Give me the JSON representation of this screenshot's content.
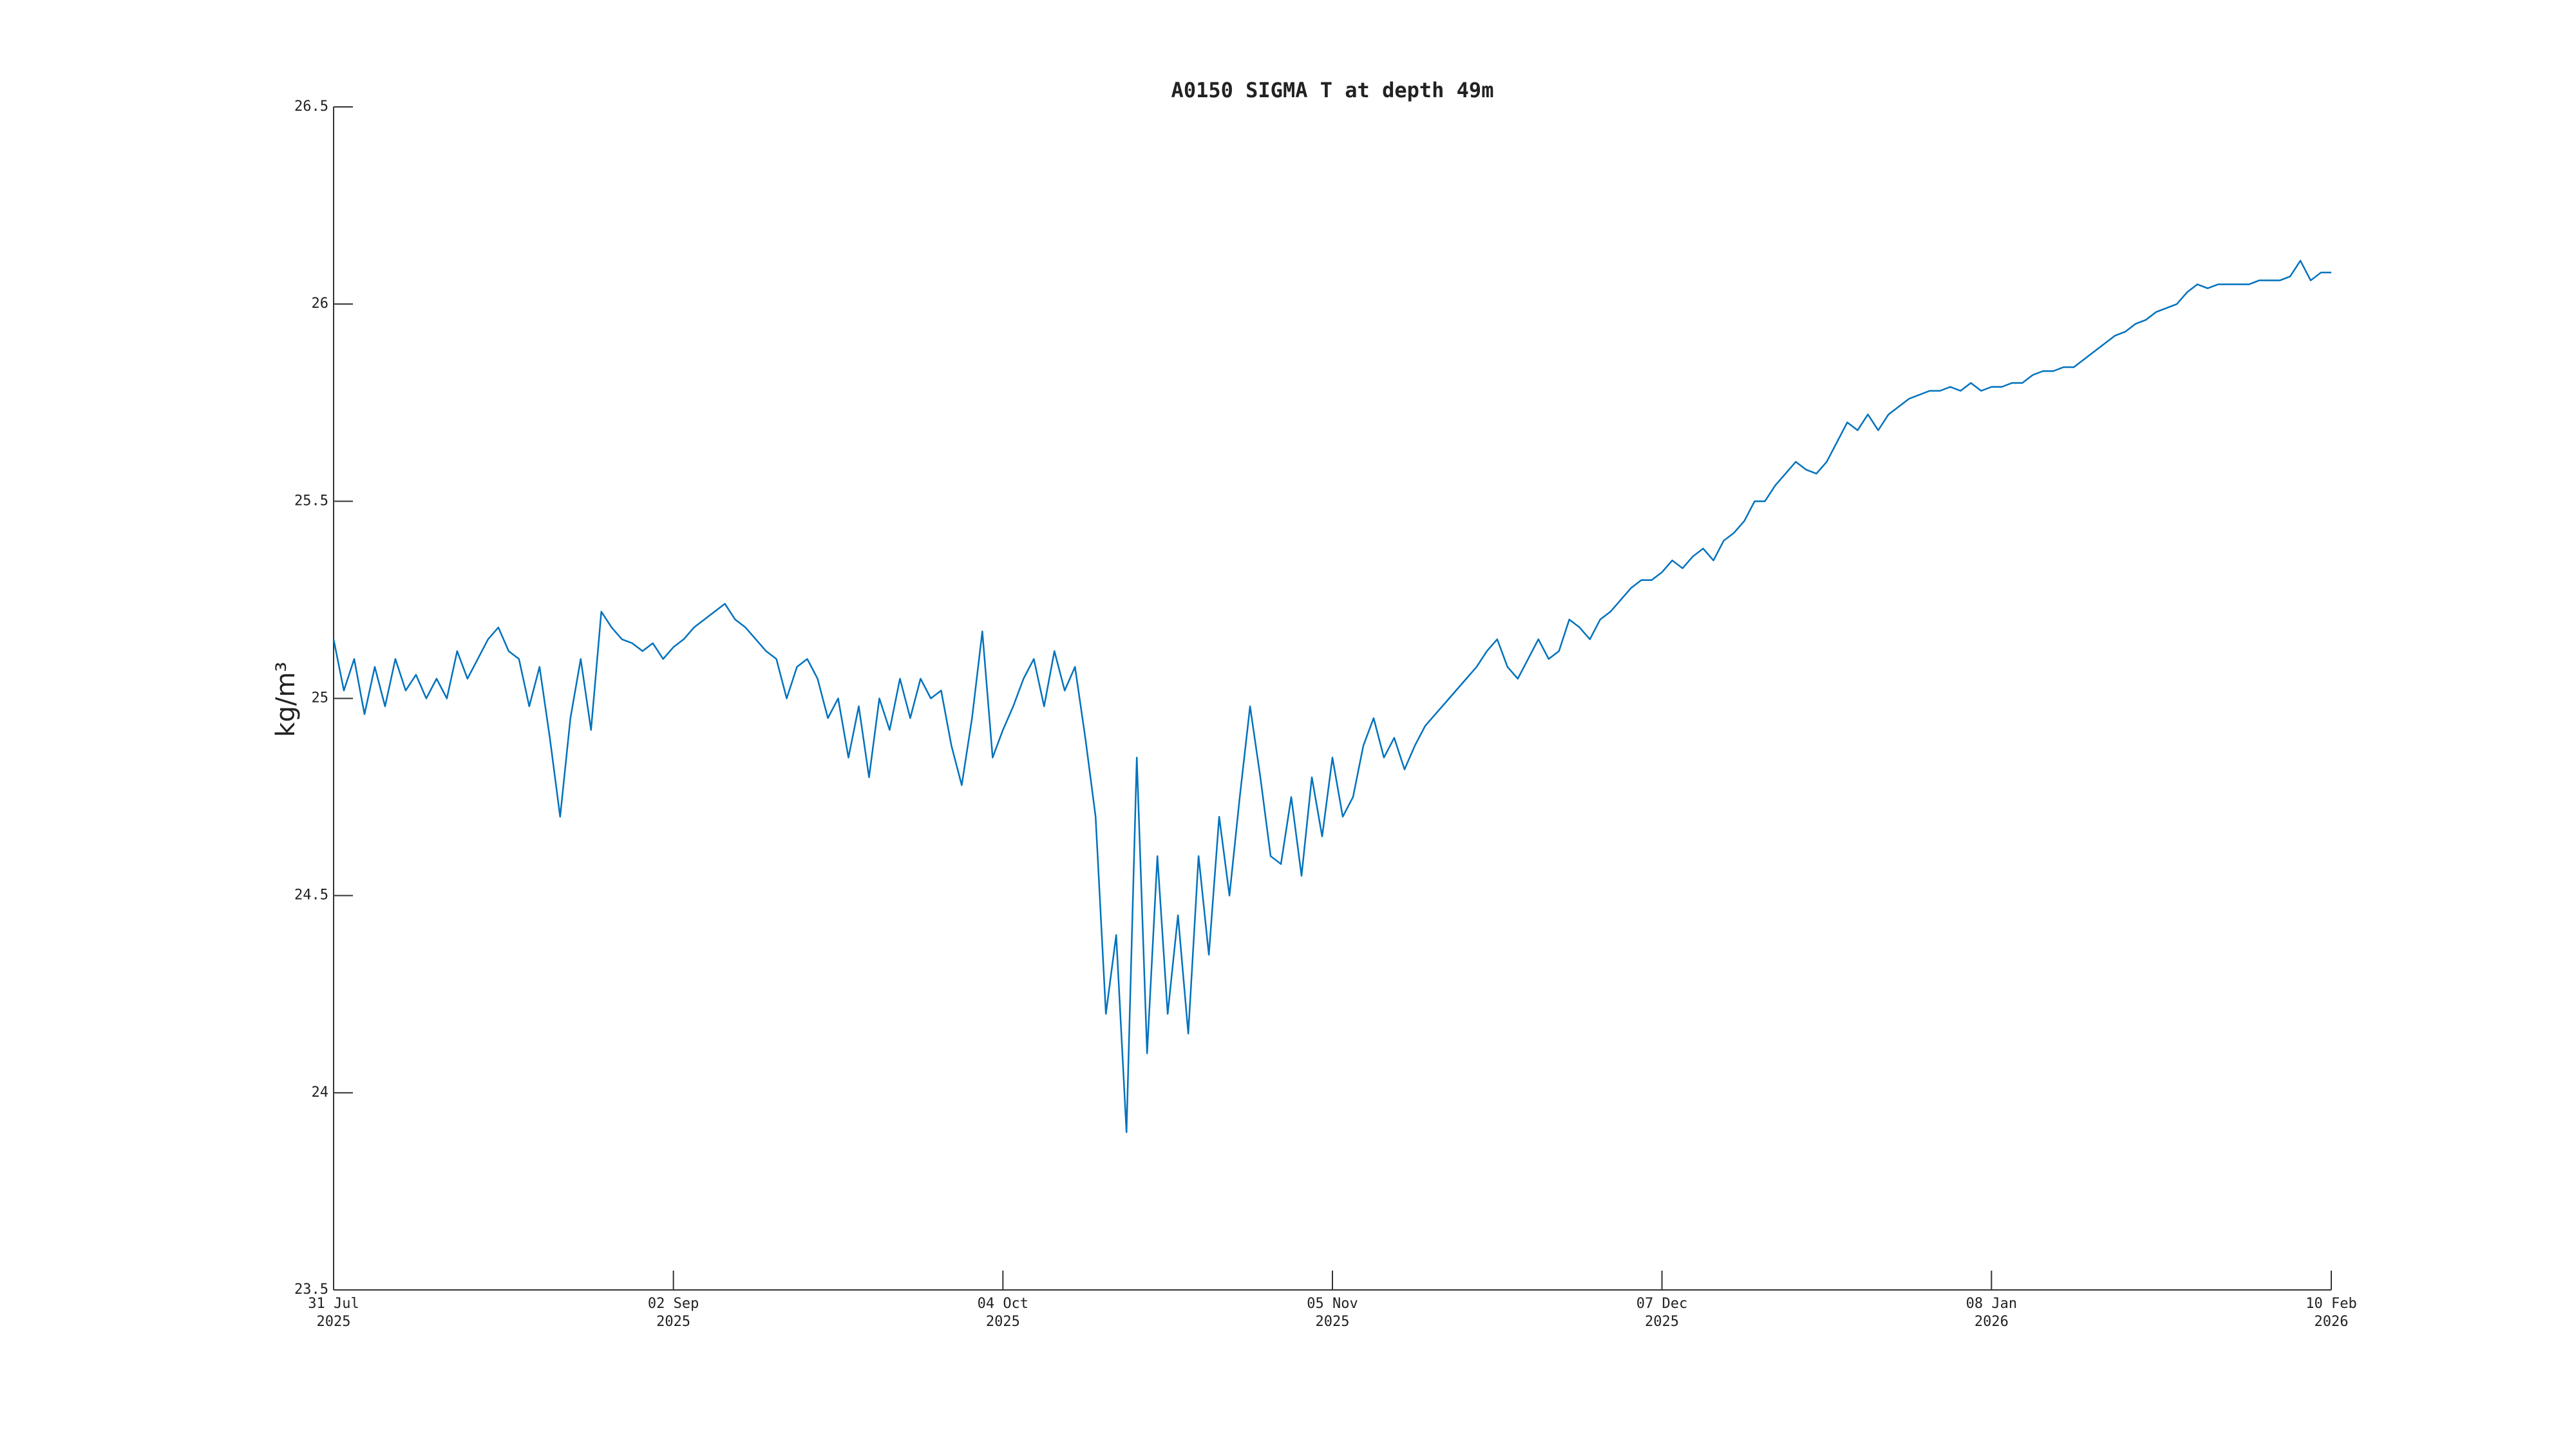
{
  "chart_data": {
    "type": "line",
    "title": "A0150 SIGMA T at depth 49m",
    "y_label": "kg/m³",
    "color": "#0072bd",
    "xlim": [
      "2025-07-31",
      "2026-02-10"
    ],
    "xticks": [
      {
        "value": "2025-07-31",
        "label": [
          "31 Jul",
          "2025"
        ]
      },
      {
        "value": "2025-09-02",
        "label": [
          "02 Sep",
          "2025"
        ]
      },
      {
        "value": "2025-10-04",
        "label": [
          "04 Oct",
          "2025"
        ]
      },
      {
        "value": "2025-11-05",
        "label": [
          "05 Nov",
          "2025"
        ]
      },
      {
        "value": "2025-12-07",
        "label": [
          "07 Dec",
          "2025"
        ]
      },
      {
        "value": "2026-01-08",
        "label": [
          "08 Jan",
          "2026"
        ]
      },
      {
        "value": "2026-02-10",
        "label": [
          "10 Feb",
          "2026"
        ]
      }
    ],
    "ylim": [
      23.5,
      26.5
    ],
    "yticks": [
      23.5,
      24,
      24.5,
      25,
      25.5,
      26,
      26.5
    ],
    "x": [
      "2025-07-31",
      "2025-08-01",
      "2025-08-02",
      "2025-08-03",
      "2025-08-04",
      "2025-08-05",
      "2025-08-06",
      "2025-08-07",
      "2025-08-08",
      "2025-08-09",
      "2025-08-10",
      "2025-08-11",
      "2025-08-12",
      "2025-08-13",
      "2025-08-14",
      "2025-08-15",
      "2025-08-16",
      "2025-08-17",
      "2025-08-18",
      "2025-08-19",
      "2025-08-20",
      "2025-08-21",
      "2025-08-22",
      "2025-08-23",
      "2025-08-24",
      "2025-08-25",
      "2025-08-26",
      "2025-08-27",
      "2025-08-28",
      "2025-08-29",
      "2025-08-30",
      "2025-08-31",
      "2025-09-01",
      "2025-09-02",
      "2025-09-03",
      "2025-09-04",
      "2025-09-05",
      "2025-09-06",
      "2025-09-07",
      "2025-09-08",
      "2025-09-09",
      "2025-09-10",
      "2025-09-11",
      "2025-09-12",
      "2025-09-13",
      "2025-09-14",
      "2025-09-15",
      "2025-09-16",
      "2025-09-17",
      "2025-09-18",
      "2025-09-19",
      "2025-09-20",
      "2025-09-21",
      "2025-09-22",
      "2025-09-23",
      "2025-09-24",
      "2025-09-25",
      "2025-09-26",
      "2025-09-27",
      "2025-09-28",
      "2025-09-29",
      "2025-09-30",
      "2025-10-01",
      "2025-10-02",
      "2025-10-03",
      "2025-10-04",
      "2025-10-05",
      "2025-10-06",
      "2025-10-07",
      "2025-10-08",
      "2025-10-09",
      "2025-10-10",
      "2025-10-11",
      "2025-10-12",
      "2025-10-13",
      "2025-10-14",
      "2025-10-15",
      "2025-10-16",
      "2025-10-17",
      "2025-10-18",
      "2025-10-19",
      "2025-10-20",
      "2025-10-21",
      "2025-10-22",
      "2025-10-23",
      "2025-10-24",
      "2025-10-25",
      "2025-10-26",
      "2025-10-27",
      "2025-10-28",
      "2025-10-29",
      "2025-10-30",
      "2025-10-31",
      "2025-11-01",
      "2025-11-02",
      "2025-11-03",
      "2025-11-04",
      "2025-11-05",
      "2025-11-06",
      "2025-11-07",
      "2025-11-08",
      "2025-11-09",
      "2025-11-10",
      "2025-11-11",
      "2025-11-12",
      "2025-11-13",
      "2025-11-14",
      "2025-11-15",
      "2025-11-16",
      "2025-11-17",
      "2025-11-18",
      "2025-11-19",
      "2025-11-20",
      "2025-11-21",
      "2025-11-22",
      "2025-11-23",
      "2025-11-24",
      "2025-11-25",
      "2025-11-26",
      "2025-11-27",
      "2025-11-28",
      "2025-11-29",
      "2025-11-30",
      "2025-12-01",
      "2025-12-02",
      "2025-12-03",
      "2025-12-04",
      "2025-12-05",
      "2025-12-06",
      "2025-12-07",
      "2025-12-08",
      "2025-12-09",
      "2025-12-10",
      "2025-12-11",
      "2025-12-12",
      "2025-12-13",
      "2025-12-14",
      "2025-12-15",
      "2025-12-16",
      "2025-12-17",
      "2025-12-18",
      "2025-12-19",
      "2025-12-20",
      "2025-12-21",
      "2025-12-22",
      "2025-12-23",
      "2025-12-24",
      "2025-12-25",
      "2025-12-26",
      "2025-12-27",
      "2025-12-28",
      "2025-12-29",
      "2025-12-30",
      "2025-12-31",
      "2026-01-01",
      "2026-01-02",
      "2026-01-03",
      "2026-01-04",
      "2026-01-05",
      "2026-01-06",
      "2026-01-07",
      "2026-01-08",
      "2026-01-09",
      "2026-01-10",
      "2026-01-11",
      "2026-01-12",
      "2026-01-13",
      "2026-01-14",
      "2026-01-15",
      "2026-01-16",
      "2026-01-17",
      "2026-01-18",
      "2026-01-19",
      "2026-01-20",
      "2026-01-21",
      "2026-01-22",
      "2026-01-23",
      "2026-01-24",
      "2026-01-25",
      "2026-01-26",
      "2026-01-27",
      "2026-01-28",
      "2026-01-29",
      "2026-01-30",
      "2026-01-31",
      "2026-02-01",
      "2026-02-02",
      "2026-02-03",
      "2026-02-04",
      "2026-02-05",
      "2026-02-06",
      "2026-02-07",
      "2026-02-08",
      "2026-02-09",
      "2026-02-10"
    ],
    "values": [
      25.15,
      25.02,
      25.1,
      24.96,
      25.08,
      24.98,
      25.1,
      25.02,
      25.06,
      25.0,
      25.05,
      25.0,
      25.12,
      25.05,
      25.1,
      25.15,
      25.18,
      25.12,
      25.1,
      24.98,
      25.08,
      24.9,
      24.7,
      24.95,
      25.1,
      24.92,
      25.22,
      25.18,
      25.15,
      25.14,
      25.12,
      25.14,
      25.1,
      25.13,
      25.15,
      25.18,
      25.2,
      25.22,
      25.24,
      25.2,
      25.18,
      25.15,
      25.12,
      25.1,
      25.0,
      25.08,
      25.1,
      25.05,
      24.95,
      25.0,
      24.85,
      24.98,
      24.8,
      25.0,
      24.92,
      25.05,
      24.95,
      25.05,
      25.0,
      25.02,
      24.88,
      24.78,
      24.95,
      25.17,
      24.85,
      24.92,
      24.98,
      25.05,
      25.1,
      24.98,
      25.12,
      25.02,
      25.08,
      24.9,
      24.7,
      24.2,
      24.4,
      23.9,
      24.85,
      24.1,
      24.6,
      24.2,
      24.45,
      24.15,
      24.6,
      24.35,
      24.7,
      24.5,
      24.75,
      24.98,
      24.8,
      24.6,
      24.58,
      24.75,
      24.55,
      24.8,
      24.65,
      24.85,
      24.7,
      24.75,
      24.88,
      24.95,
      24.85,
      24.9,
      24.82,
      24.88,
      24.93,
      24.96,
      24.99,
      25.02,
      25.05,
      25.08,
      25.12,
      25.15,
      25.08,
      25.05,
      25.1,
      25.15,
      25.1,
      25.12,
      25.2,
      25.18,
      25.15,
      25.2,
      25.22,
      25.25,
      25.28,
      25.3,
      25.3,
      25.32,
      25.35,
      25.33,
      25.36,
      25.38,
      25.35,
      25.4,
      25.42,
      25.45,
      25.5,
      25.5,
      25.54,
      25.57,
      25.6,
      25.58,
      25.57,
      25.6,
      25.65,
      25.7,
      25.68,
      25.72,
      25.68,
      25.72,
      25.74,
      25.76,
      25.77,
      25.78,
      25.78,
      25.79,
      25.78,
      25.8,
      25.78,
      25.79,
      25.79,
      25.8,
      25.8,
      25.82,
      25.83,
      25.83,
      25.84,
      25.84,
      25.86,
      25.88,
      25.9,
      25.92,
      25.93,
      25.95,
      25.96,
      25.98,
      25.99,
      26.0,
      26.03,
      26.05,
      26.04,
      26.05,
      26.05,
      26.05,
      26.05,
      26.06,
      26.06,
      26.06,
      26.07,
      26.11,
      26.06,
      26.08,
      26.08
    ]
  }
}
